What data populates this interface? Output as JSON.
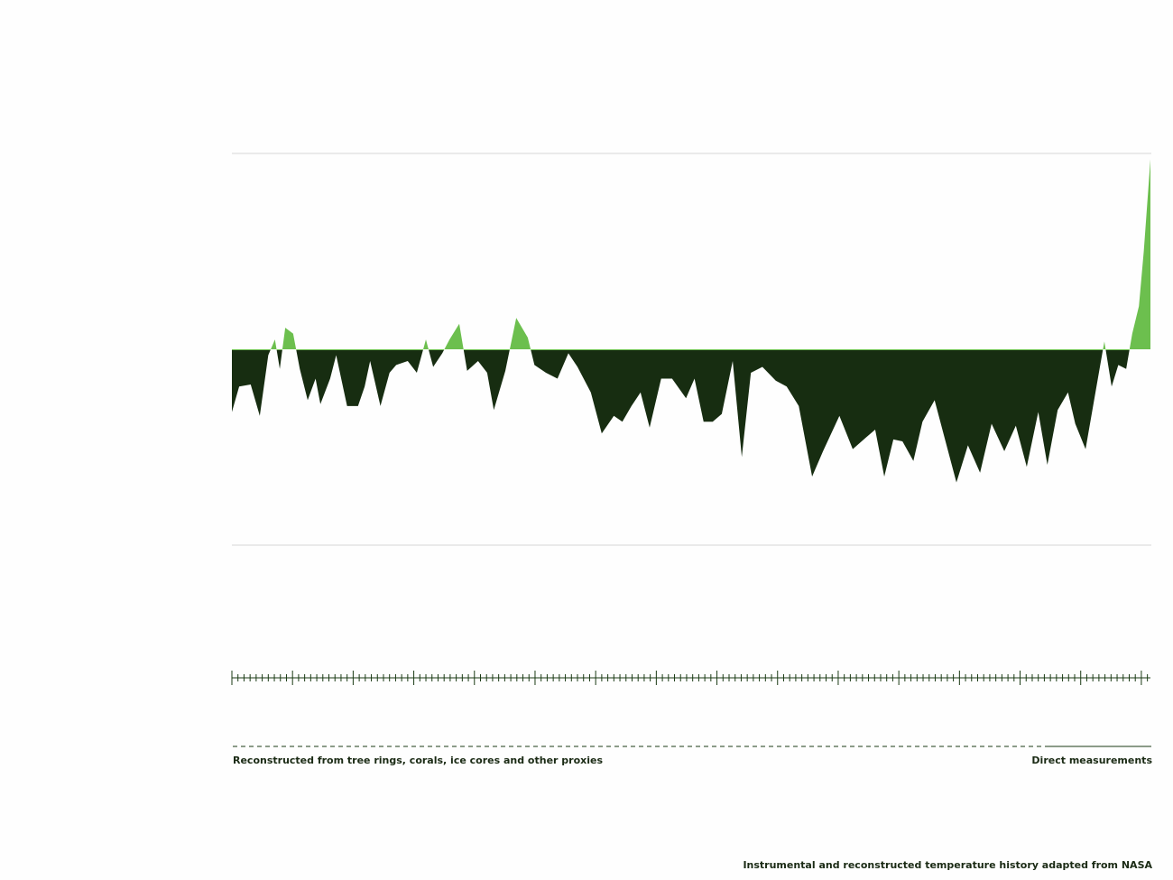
{
  "chart_data": {
    "type": "area",
    "x": [
      500,
      512,
      531,
      546,
      560,
      571,
      579,
      588,
      601,
      612,
      625,
      638,
      646,
      662,
      672,
      690,
      708,
      719,
      728,
      745,
      760,
      771,
      790,
      805,
      820,
      832,
      847,
      859,
      875,
      888,
      906,
      921,
      932,
      951,
      969,
      988,
      999,
      1018,
      1037,
      1055,
      1070,
      1092,
      1110,
      1130,
      1144,
      1159,
      1174,
      1189,
      1208,
      1226,
      1249,
      1263,
      1278,
      1293,
      1308,
      1326,
      1341,
      1356,
      1375,
      1397,
      1415,
      1435,
      1457,
      1475,
      1502,
      1524,
      1546,
      1561,
      1576,
      1591,
      1606,
      1624,
      1639,
      1659,
      1677,
      1695,
      1714,
      1734,
      1753,
      1774,
      1793,
      1811,
      1830,
      1845,
      1862,
      1879,
      1891,
      1908,
      1926,
      1939,
      1951,
      1962,
      1975,
      1985,
      1996,
      2004,
      2015
    ],
    "values": [
      -0.32,
      -0.19,
      -0.18,
      -0.34,
      -0.03,
      0.05,
      -0.1,
      0.11,
      0.08,
      -0.1,
      -0.26,
      -0.15,
      -0.28,
      -0.15,
      -0.03,
      -0.29,
      -0.29,
      -0.19,
      -0.06,
      -0.29,
      -0.12,
      -0.08,
      -0.06,
      -0.12,
      0.05,
      -0.09,
      -0.02,
      0.05,
      0.13,
      -0.11,
      -0.06,
      -0.12,
      -0.31,
      -0.11,
      0.16,
      0.06,
      -0.08,
      -0.12,
      -0.15,
      -0.02,
      -0.09,
      -0.22,
      -0.43,
      -0.34,
      -0.37,
      -0.29,
      -0.22,
      -0.4,
      -0.15,
      -0.15,
      -0.25,
      -0.15,
      -0.37,
      -0.37,
      -0.33,
      -0.06,
      -0.55,
      -0.12,
      -0.09,
      -0.16,
      -0.19,
      -0.29,
      -0.65,
      -0.52,
      -0.34,
      -0.51,
      -0.45,
      -0.41,
      -0.65,
      -0.46,
      -0.47,
      -0.57,
      -0.37,
      -0.26,
      -0.47,
      -0.68,
      -0.49,
      -0.63,
      -0.38,
      -0.52,
      -0.39,
      -0.6,
      -0.32,
      -0.59,
      -0.31,
      -0.22,
      -0.38,
      -0.51,
      -0.19,
      0.04,
      -0.19,
      -0.08,
      -0.1,
      0.08,
      0.22,
      0.5,
      0.97
    ],
    "color_positive": "#6cbf4e",
    "color_negative": "#172d11",
    "xlim": [
      500,
      2015
    ],
    "xticks": [
      500,
      510,
      520,
      530,
      540,
      550,
      560,
      570,
      580,
      590,
      600,
      610,
      620,
      630,
      640,
      650,
      660,
      670,
      680,
      690,
      700,
      710,
      720,
      730,
      740,
      750,
      760,
      770,
      780,
      790,
      800,
      810,
      820,
      830,
      840,
      850,
      860,
      870,
      880,
      890,
      900,
      910,
      920,
      930,
      940,
      950,
      960,
      970,
      980,
      990,
      1000,
      1010,
      1020,
      1030,
      1040,
      1050,
      1060,
      1070,
      1080,
      1090,
      1100,
      1110,
      1120,
      1130,
      1140,
      1150,
      1160,
      1170,
      1180,
      1190,
      1200,
      1210,
      1220,
      1230,
      1240,
      1250,
      1260,
      1270,
      1280,
      1290,
      1300,
      1310,
      1320,
      1330,
      1340,
      1350,
      1360,
      1370,
      1380,
      1390,
      1400,
      1410,
      1420,
      1430,
      1440,
      1450,
      1460,
      1470,
      1480,
      1490,
      1500,
      1510,
      1520,
      1530,
      1540,
      1550,
      1560,
      1570,
      1580,
      1590,
      1600,
      1610,
      1620,
      1630,
      1640,
      1650,
      1660,
      1670,
      1680,
      1690,
      1700,
      1710,
      1720,
      1730,
      1740,
      1750,
      1760,
      1770,
      1780,
      1790,
      1800,
      1810,
      1820,
      1830,
      1840,
      1850,
      1860,
      1870,
      1880,
      1890,
      1900,
      1910,
      1920,
      1930,
      1940,
      1950,
      1960,
      1970,
      1980,
      1990,
      2000,
      2010
    ],
    "xtick_major_every": 100,
    "ylim": [
      -1,
      1
    ],
    "yticks": [
      -1,
      1
    ],
    "grid": true,
    "proxy_label": "Reconstructed from tree rings, corals, ice cores and other proxies",
    "direct_label": "Direct measurements",
    "source": "Instrumental and reconstructed temperature history adapted from NASA"
  }
}
